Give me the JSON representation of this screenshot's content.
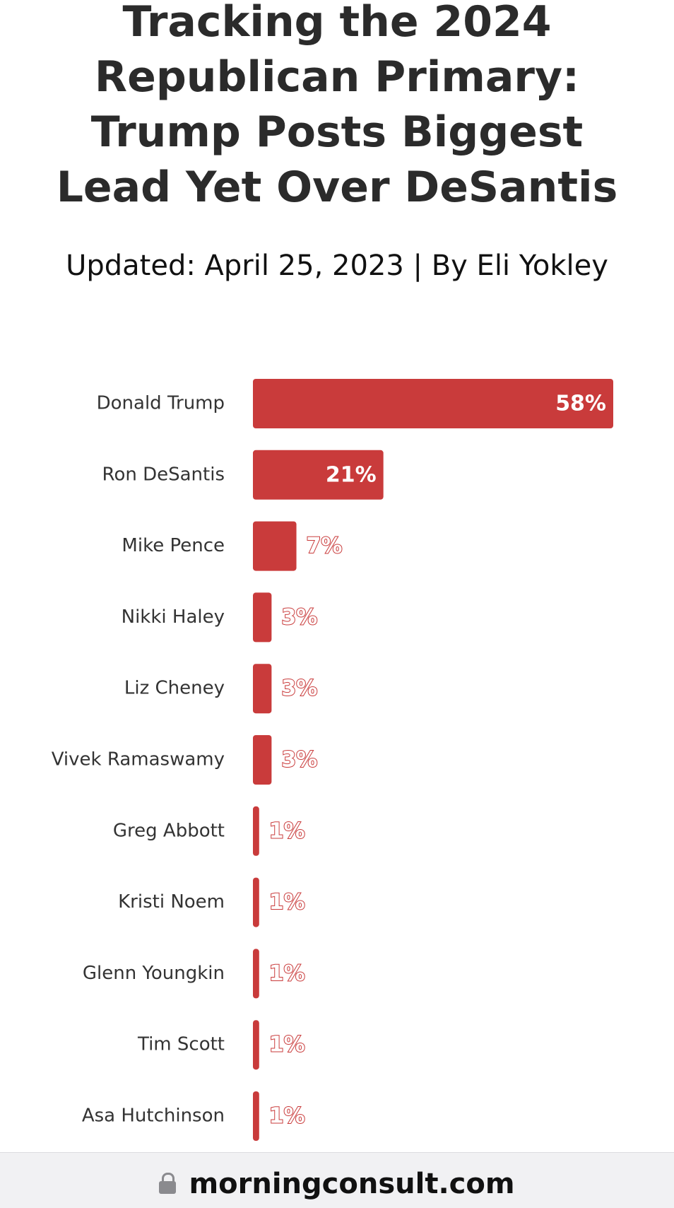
{
  "article": {
    "title": "Tracking the 2024 Republican Primary: Trump Posts Biggest Lead Yet Over DeSantis",
    "byline": "Updated: April 25, 2023 | By Eli Yokley"
  },
  "chart_data": {
    "type": "bar",
    "orientation": "horizontal",
    "title": "",
    "xlabel": "",
    "ylabel": "",
    "categories": [
      "Donald Trump",
      "Ron DeSantis",
      "Mike Pence",
      "Nikki Haley",
      "Liz Cheney",
      "Vivek Ramaswamy",
      "Greg Abbott",
      "Kristi Noem",
      "Glenn Youngkin",
      "Tim Scott",
      "Asa Hutchinson"
    ],
    "values": [
      58,
      21,
      7,
      3,
      3,
      3,
      1,
      1,
      1,
      1,
      1
    ],
    "value_labels": [
      "58%",
      "21%",
      "7%",
      "3%",
      "3%",
      "3%",
      "1%",
      "1%",
      "1%",
      "1%",
      "1%"
    ],
    "xlim": [
      0,
      58
    ],
    "grid": false,
    "bar_color": "#c93b3b"
  },
  "footer": {
    "url": "morningconsult.com",
    "icon": "lock-icon"
  }
}
